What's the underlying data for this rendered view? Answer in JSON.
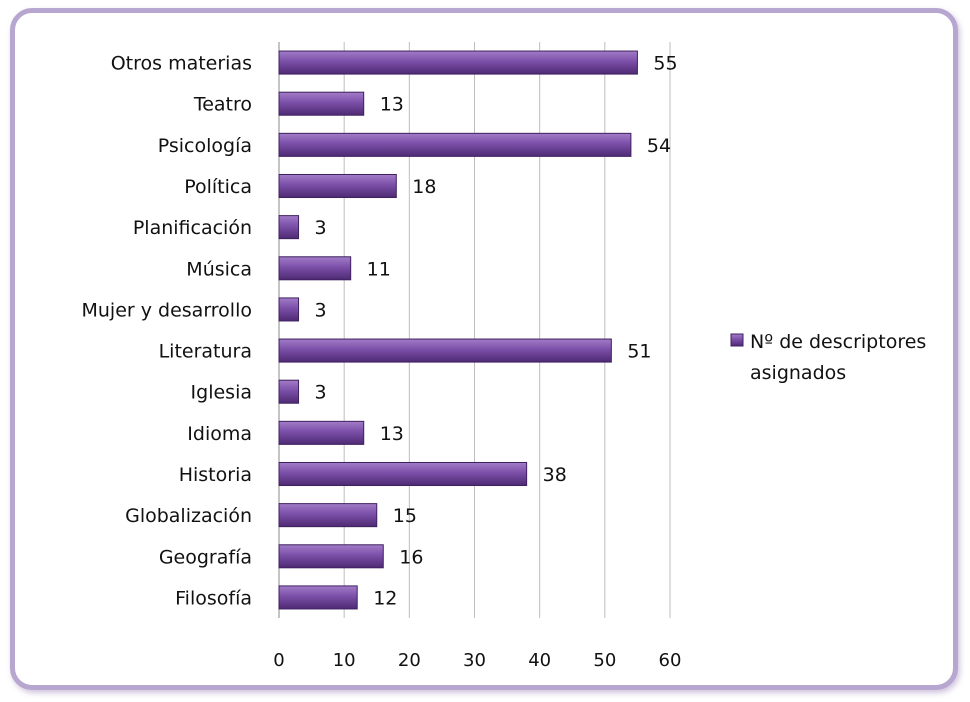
{
  "chart_data": {
    "type": "bar",
    "orientation": "horizontal",
    "categories": [
      "Filosofía",
      "Geografía",
      "Globalización",
      "Historia",
      "Idioma",
      "Iglesia",
      "Literatura",
      "Mujer y desarrollo",
      "Música",
      "Planificación",
      "Política",
      "Psicología",
      "Teatro",
      "Otros materias"
    ],
    "series": [
      {
        "name": "Nº de descriptores asignados",
        "values": [
          12,
          16,
          15,
          38,
          13,
          3,
          51,
          3,
          11,
          3,
          18,
          54,
          13,
          55
        ],
        "color": "#7b4fa8"
      }
    ],
    "xlim": [
      0,
      60
    ],
    "xticks": [
      0,
      10,
      20,
      30,
      40,
      50,
      60
    ],
    "grid": "vertical",
    "legend_position": "right",
    "data_labels": true
  },
  "legend": {
    "line1": "Nº de descriptores",
    "line2": "asignados"
  }
}
